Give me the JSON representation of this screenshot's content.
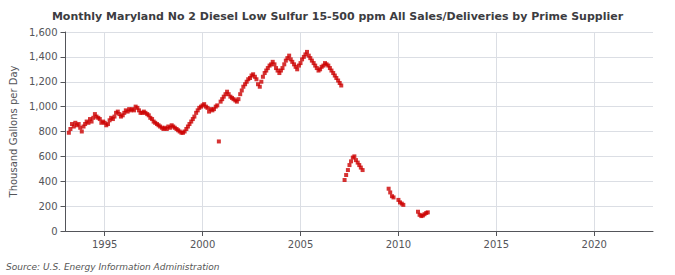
{
  "chart_data": {
    "type": "scatter",
    "title": "Monthly Maryland No 2 Diesel Low Sulfur 15-500 ppm All Sales/Deliveries by Prime Supplier",
    "ylabel": "Thousand Gallons per Day",
    "annotation": "Source: U.S. Energy Information Administration",
    "color": "#cc0000",
    "marker": "square",
    "grid": true,
    "xlim": [
      1993.0,
      2023.0
    ],
    "xticks": [
      1995,
      2000,
      2005,
      2010,
      2015,
      2020
    ],
    "ylim": [
      0,
      1600
    ],
    "yticks": [
      0,
      200,
      400,
      600,
      800,
      {
        "value": 1000,
        "label": "1,000"
      },
      {
        "value": 1200,
        "label": "1,200"
      },
      {
        "value": 1400,
        "label": "1,400"
      },
      {
        "value": 1600,
        "label": "1,600"
      }
    ],
    "x": [
      1993.17,
      1993.25,
      1993.33,
      1993.42,
      1993.5,
      1993.58,
      1993.67,
      1993.75,
      1993.83,
      1993.92,
      1994.0,
      1994.08,
      1994.17,
      1994.25,
      1994.33,
      1994.42,
      1994.5,
      1994.58,
      1994.67,
      1994.75,
      1994.83,
      1994.92,
      1995.0,
      1995.08,
      1995.17,
      1995.25,
      1995.33,
      1995.42,
      1995.5,
      1995.58,
      1995.67,
      1995.75,
      1995.83,
      1995.92,
      1996.0,
      1996.08,
      1996.17,
      1996.25,
      1996.33,
      1996.42,
      1996.5,
      1996.58,
      1996.67,
      1996.75,
      1996.83,
      1996.92,
      1997.0,
      1997.08,
      1997.17,
      1997.25,
      1997.33,
      1997.42,
      1997.5,
      1997.58,
      1997.67,
      1997.75,
      1997.83,
      1997.92,
      1998.0,
      1998.08,
      1998.17,
      1998.25,
      1998.33,
      1998.42,
      1998.5,
      1998.58,
      1998.67,
      1998.75,
      1998.83,
      1998.92,
      1999.0,
      1999.08,
      1999.17,
      1999.25,
      1999.33,
      1999.42,
      1999.5,
      1999.58,
      1999.67,
      1999.75,
      1999.83,
      1999.92,
      2000.0,
      2000.08,
      2000.17,
      2000.25,
      2000.33,
      2000.42,
      2000.5,
      2000.58,
      2000.67,
      2000.75,
      2000.83,
      2000.92,
      2001.0,
      2001.08,
      2001.17,
      2001.25,
      2001.33,
      2001.42,
      2001.5,
      2001.58,
      2001.67,
      2001.75,
      2001.83,
      2001.92,
      2002.0,
      2002.08,
      2002.17,
      2002.25,
      2002.33,
      2002.42,
      2002.5,
      2002.58,
      2002.67,
      2002.75,
      2002.83,
      2002.92,
      2003.0,
      2003.08,
      2003.17,
      2003.25,
      2003.33,
      2003.42,
      2003.5,
      2003.58,
      2003.67,
      2003.75,
      2003.83,
      2003.92,
      2004.0,
      2004.08,
      2004.17,
      2004.25,
      2004.33,
      2004.42,
      2004.5,
      2004.58,
      2004.67,
      2004.75,
      2004.83,
      2004.92,
      2005.0,
      2005.08,
      2005.17,
      2005.25,
      2005.33,
      2005.42,
      2005.5,
      2005.58,
      2005.67,
      2005.75,
      2005.83,
      2005.92,
      2006.0,
      2006.08,
      2006.17,
      2006.25,
      2006.33,
      2006.42,
      2006.5,
      2006.58,
      2006.67,
      2006.75,
      2006.83,
      2006.92,
      2007.0,
      2007.08,
      2007.25,
      2007.33,
      2007.42,
      2007.5,
      2007.58,
      2007.67,
      2007.75,
      2007.83,
      2007.92,
      2008.0,
      2008.08,
      2008.17,
      2009.5,
      2009.58,
      2009.67,
      2009.75,
      2010.0,
      2010.08,
      2010.17,
      2010.25,
      2011.0,
      2011.08,
      2011.17,
      2011.25,
      2011.33,
      2011.42,
      2011.5
    ],
    "values": [
      790,
      820,
      860,
      840,
      870,
      850,
      860,
      830,
      800,
      840,
      860,
      880,
      870,
      900,
      880,
      910,
      940,
      920,
      910,
      900,
      870,
      880,
      870,
      850,
      860,
      890,
      910,
      900,
      920,
      950,
      960,
      940,
      920,
      930,
      950,
      970,
      960,
      980,
      970,
      980,
      970,
      1000,
      990,
      970,
      950,
      950,
      960,
      950,
      940,
      930,
      910,
      900,
      880,
      870,
      860,
      850,
      840,
      830,
      820,
      830,
      820,
      840,
      830,
      850,
      840,
      830,
      820,
      810,
      800,
      790,
      790,
      800,
      820,
      840,
      860,
      880,
      900,
      920,
      950,
      970,
      990,
      1000,
      1010,
      1020,
      1000,
      990,
      960,
      980,
      970,
      980,
      1000,
      1010,
      720,
      1040,
      1060,
      1080,
      1100,
      1120,
      1100,
      1080,
      1070,
      1060,
      1050,
      1040,
      1060,
      1100,
      1130,
      1160,
      1180,
      1200,
      1220,
      1230,
      1250,
      1260,
      1240,
      1220,
      1180,
      1160,
      1200,
      1240,
      1270,
      1290,
      1310,
      1330,
      1340,
      1360,
      1340,
      1310,
      1290,
      1270,
      1290,
      1310,
      1340,
      1370,
      1390,
      1410,
      1380,
      1360,
      1340,
      1320,
      1300,
      1330,
      1350,
      1380,
      1400,
      1420,
      1440,
      1410,
      1390,
      1370,
      1350,
      1330,
      1310,
      1290,
      1300,
      1320,
      1330,
      1350,
      1340,
      1330,
      1310,
      1290,
      1270,
      1250,
      1230,
      1210,
      1190,
      1170,
      410,
      450,
      490,
      530,
      560,
      590,
      600,
      570,
      550,
      530,
      510,
      490,
      340,
      310,
      280,
      270,
      250,
      230,
      220,
      210,
      155,
      130,
      120,
      125,
      135,
      145,
      150
    ]
  }
}
